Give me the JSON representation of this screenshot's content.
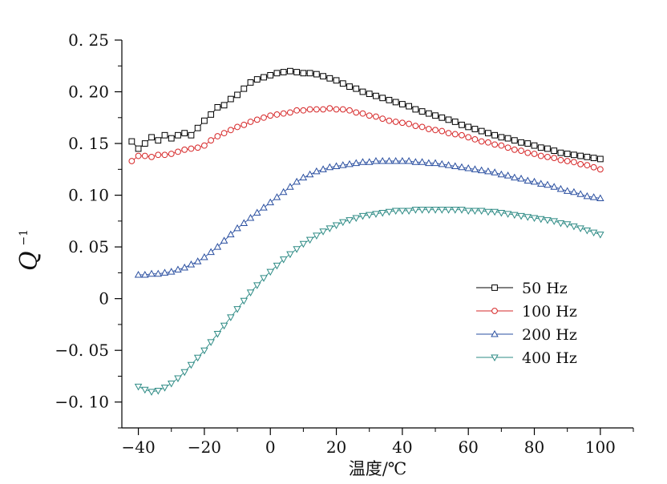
{
  "chart_data": {
    "type": "scatter",
    "title": "",
    "xlabel": "温度/℃",
    "ylabel_main": "Q",
    "ylabel_sup": "−1",
    "xlim": [
      -45,
      110
    ],
    "ylim": [
      -0.125,
      0.25
    ],
    "xticks": [
      -40,
      -20,
      0,
      20,
      40,
      60,
      80,
      100
    ],
    "xtick_labels": [
      "−40",
      "−20",
      "0",
      "20",
      "40",
      "60",
      "80",
      "100"
    ],
    "yticks": [
      0.25,
      0.2,
      0.15,
      0.1,
      0.05,
      0,
      -0.05,
      -0.1
    ],
    "ytick_labels": [
      "0. 25",
      "0. 20",
      "0. 15",
      "0. 10",
      "0. 05",
      "0",
      "−0. 05",
      "−0. 10"
    ],
    "grid": false,
    "legend_position": "bottom-right",
    "series": [
      {
        "name": "50 Hz",
        "color": "#000000",
        "marker": "square",
        "x": [
          -42,
          -40,
          -38,
          -36,
          -34,
          -32,
          -30,
          -28,
          -26,
          -24,
          -22,
          -20,
          -18,
          -16,
          -14,
          -12,
          -10,
          -8,
          -6,
          -4,
          -2,
          0,
          2,
          4,
          6,
          8,
          10,
          12,
          14,
          16,
          18,
          20,
          22,
          24,
          26,
          28,
          30,
          32,
          34,
          36,
          38,
          40,
          42,
          44,
          46,
          48,
          50,
          52,
          54,
          56,
          58,
          60,
          62,
          64,
          66,
          68,
          70,
          72,
          74,
          76,
          78,
          80,
          82,
          84,
          86,
          88,
          90,
          92,
          94,
          96,
          98,
          100
        ],
        "values": [
          0.152,
          0.145,
          0.15,
          0.156,
          0.153,
          0.158,
          0.155,
          0.158,
          0.16,
          0.158,
          0.165,
          0.172,
          0.178,
          0.185,
          0.187,
          0.193,
          0.197,
          0.203,
          0.209,
          0.212,
          0.214,
          0.216,
          0.218,
          0.219,
          0.22,
          0.219,
          0.218,
          0.218,
          0.217,
          0.215,
          0.213,
          0.211,
          0.208,
          0.205,
          0.203,
          0.2,
          0.198,
          0.196,
          0.194,
          0.192,
          0.19,
          0.188,
          0.186,
          0.183,
          0.181,
          0.179,
          0.177,
          0.175,
          0.173,
          0.171,
          0.168,
          0.166,
          0.164,
          0.162,
          0.16,
          0.158,
          0.156,
          0.155,
          0.153,
          0.151,
          0.15,
          0.148,
          0.146,
          0.145,
          0.143,
          0.141,
          0.14,
          0.139,
          0.138,
          0.137,
          0.136,
          0.135
        ]
      },
      {
        "name": "100 Hz",
        "color": "#d62728",
        "marker": "circle",
        "x": [
          -42,
          -40,
          -38,
          -36,
          -34,
          -32,
          -30,
          -28,
          -26,
          -24,
          -22,
          -20,
          -18,
          -16,
          -14,
          -12,
          -10,
          -8,
          -6,
          -4,
          -2,
          0,
          2,
          4,
          6,
          8,
          10,
          12,
          14,
          16,
          18,
          20,
          22,
          24,
          26,
          28,
          30,
          32,
          34,
          36,
          38,
          40,
          42,
          44,
          46,
          48,
          50,
          52,
          54,
          56,
          58,
          60,
          62,
          64,
          66,
          68,
          70,
          72,
          74,
          76,
          78,
          80,
          82,
          84,
          86,
          88,
          90,
          92,
          94,
          96,
          98,
          100
        ],
        "values": [
          0.133,
          0.138,
          0.138,
          0.137,
          0.139,
          0.139,
          0.14,
          0.142,
          0.144,
          0.145,
          0.146,
          0.148,
          0.153,
          0.157,
          0.16,
          0.163,
          0.166,
          0.168,
          0.171,
          0.173,
          0.175,
          0.177,
          0.178,
          0.179,
          0.18,
          0.182,
          0.182,
          0.183,
          0.183,
          0.183,
          0.184,
          0.183,
          0.183,
          0.182,
          0.18,
          0.179,
          0.177,
          0.176,
          0.174,
          0.172,
          0.171,
          0.17,
          0.169,
          0.167,
          0.166,
          0.164,
          0.163,
          0.162,
          0.16,
          0.159,
          0.158,
          0.156,
          0.154,
          0.152,
          0.151,
          0.149,
          0.148,
          0.146,
          0.144,
          0.143,
          0.141,
          0.14,
          0.138,
          0.137,
          0.136,
          0.134,
          0.133,
          0.132,
          0.13,
          0.129,
          0.127,
          0.125
        ]
      },
      {
        "name": "200 Hz",
        "color": "#2a4fa0",
        "marker": "triangle-up",
        "x": [
          -40,
          -38,
          -36,
          -34,
          -32,
          -30,
          -28,
          -26,
          -24,
          -22,
          -20,
          -18,
          -16,
          -14,
          -12,
          -10,
          -8,
          -6,
          -4,
          -2,
          0,
          2,
          4,
          6,
          8,
          10,
          12,
          14,
          16,
          18,
          20,
          22,
          24,
          26,
          28,
          30,
          32,
          34,
          36,
          38,
          40,
          42,
          44,
          46,
          48,
          50,
          52,
          54,
          56,
          58,
          60,
          62,
          64,
          66,
          68,
          70,
          72,
          74,
          76,
          78,
          80,
          82,
          84,
          86,
          88,
          90,
          92,
          94,
          96,
          98,
          100
        ],
        "values": [
          0.023,
          0.023,
          0.024,
          0.024,
          0.025,
          0.026,
          0.028,
          0.03,
          0.033,
          0.036,
          0.04,
          0.045,
          0.05,
          0.056,
          0.062,
          0.068,
          0.073,
          0.078,
          0.083,
          0.088,
          0.093,
          0.098,
          0.103,
          0.108,
          0.113,
          0.117,
          0.12,
          0.123,
          0.125,
          0.127,
          0.128,
          0.129,
          0.13,
          0.131,
          0.132,
          0.132,
          0.133,
          0.133,
          0.133,
          0.133,
          0.133,
          0.133,
          0.132,
          0.132,
          0.131,
          0.131,
          0.13,
          0.129,
          0.128,
          0.127,
          0.126,
          0.125,
          0.124,
          0.123,
          0.122,
          0.12,
          0.119,
          0.117,
          0.116,
          0.114,
          0.113,
          0.111,
          0.11,
          0.108,
          0.106,
          0.104,
          0.103,
          0.101,
          0.099,
          0.098,
          0.097
        ]
      },
      {
        "name": "400 Hz",
        "color": "#2e8b85",
        "marker": "triangle-down",
        "x": [
          -40,
          -38,
          -36,
          -34,
          -32,
          -30,
          -28,
          -26,
          -24,
          -22,
          -20,
          -18,
          -16,
          -14,
          -12,
          -10,
          -8,
          -6,
          -4,
          -2,
          0,
          2,
          4,
          6,
          8,
          10,
          12,
          14,
          16,
          18,
          20,
          22,
          24,
          26,
          28,
          30,
          32,
          34,
          36,
          38,
          40,
          42,
          44,
          46,
          48,
          50,
          52,
          54,
          56,
          58,
          60,
          62,
          64,
          66,
          68,
          70,
          72,
          74,
          76,
          78,
          80,
          82,
          84,
          86,
          88,
          90,
          92,
          94,
          96,
          98,
          100
        ],
        "values": [
          -0.085,
          -0.088,
          -0.09,
          -0.089,
          -0.086,
          -0.082,
          -0.077,
          -0.071,
          -0.064,
          -0.057,
          -0.05,
          -0.042,
          -0.034,
          -0.026,
          -0.018,
          -0.01,
          -0.002,
          0.006,
          0.013,
          0.02,
          0.026,
          0.032,
          0.038,
          0.043,
          0.048,
          0.053,
          0.057,
          0.061,
          0.065,
          0.068,
          0.071,
          0.074,
          0.076,
          0.078,
          0.08,
          0.081,
          0.082,
          0.083,
          0.084,
          0.085,
          0.085,
          0.085,
          0.086,
          0.086,
          0.086,
          0.086,
          0.086,
          0.086,
          0.086,
          0.086,
          0.085,
          0.085,
          0.085,
          0.084,
          0.084,
          0.083,
          0.082,
          0.081,
          0.08,
          0.079,
          0.078,
          0.077,
          0.076,
          0.075,
          0.073,
          0.072,
          0.07,
          0.068,
          0.066,
          0.064,
          0.062
        ]
      }
    ]
  }
}
